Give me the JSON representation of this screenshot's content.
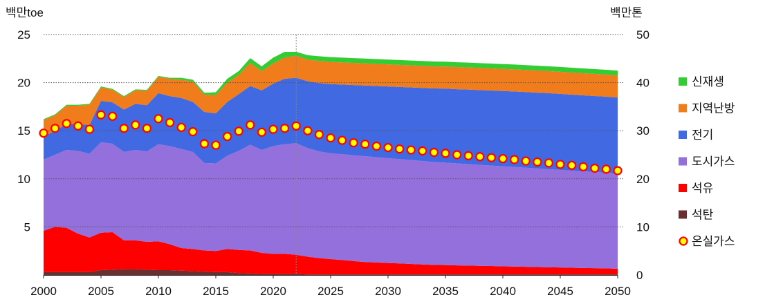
{
  "chart_data": {
    "type": "area",
    "left_axis_label": "백만toe",
    "right_axis_label": "백만톤",
    "left_ylim": [
      0,
      25
    ],
    "right_ylim": [
      0,
      50
    ],
    "left_ticks": [
      "5",
      "10",
      "15",
      "20",
      "25"
    ],
    "right_ticks": [
      "0",
      "10",
      "20",
      "30",
      "40",
      "50"
    ],
    "x_ticks": [
      "2000",
      "2005",
      "2010",
      "2015",
      "2020",
      "2025",
      "2030",
      "2035",
      "2040",
      "2045",
      "2050"
    ],
    "grid": "dotted horizontal",
    "projection_divider_year": 2022,
    "legend_position": "right",
    "x": [
      2000,
      2001,
      2002,
      2003,
      2004,
      2005,
      2006,
      2007,
      2008,
      2009,
      2010,
      2011,
      2012,
      2013,
      2014,
      2015,
      2016,
      2017,
      2018,
      2019,
      2020,
      2021,
      2022,
      2023,
      2024,
      2025,
      2026,
      2027,
      2028,
      2029,
      2030,
      2031,
      2032,
      2033,
      2034,
      2035,
      2036,
      2037,
      2038,
      2039,
      2040,
      2041,
      2042,
      2043,
      2044,
      2045,
      2046,
      2047,
      2048,
      2049,
      2050
    ],
    "series": [
      {
        "name": "석탄",
        "axis": "left",
        "color": "#6b2f2f",
        "values": [
          0.3,
          0.3,
          0.3,
          0.3,
          0.3,
          0.5,
          0.55,
          0.6,
          0.6,
          0.55,
          0.5,
          0.5,
          0.45,
          0.4,
          0.35,
          0.3,
          0.3,
          0.2,
          0.15,
          0.1,
          0.1,
          0.1,
          0.1,
          0.05,
          0.05,
          0.05,
          0.05,
          0.05,
          0.05,
          0.05,
          0.05,
          0.05,
          0.05,
          0.05,
          0.05,
          0.05,
          0.05,
          0.05,
          0.05,
          0.05,
          0.05,
          0.05,
          0.05,
          0.05,
          0.05,
          0.05,
          0.05,
          0.05,
          0.05,
          0.05,
          0.05
        ]
      },
      {
        "name": "석유",
        "axis": "left",
        "color": "#ff0000",
        "values": [
          4.3,
          4.7,
          4.6,
          4.0,
          3.6,
          3.9,
          3.9,
          3.0,
          3.0,
          2.9,
          3.0,
          2.7,
          2.35,
          2.3,
          2.2,
          2.2,
          2.4,
          2.4,
          2.4,
          2.2,
          2.1,
          2.1,
          2.0,
          1.85,
          1.7,
          1.6,
          1.5,
          1.4,
          1.3,
          1.25,
          1.2,
          1.15,
          1.1,
          1.05,
          1.0,
          0.98,
          0.95,
          0.93,
          0.9,
          0.88,
          0.85,
          0.83,
          0.8,
          0.78,
          0.75,
          0.73,
          0.7,
          0.68,
          0.66,
          0.64,
          0.6
        ]
      },
      {
        "name": "도시가스",
        "axis": "left",
        "color": "#9370db",
        "values": [
          7.4,
          7.5,
          8.1,
          8.6,
          8.7,
          9.4,
          9.2,
          9.2,
          9.4,
          9.4,
          10.1,
          10.2,
          10.3,
          10.1,
          9.1,
          9.1,
          9.7,
          10.3,
          11.0,
          10.7,
          11.2,
          11.4,
          11.6,
          11.3,
          11.1,
          11.0,
          11.0,
          11.0,
          11.0,
          10.95,
          10.9,
          10.85,
          10.8,
          10.75,
          10.7,
          10.65,
          10.6,
          10.55,
          10.5,
          10.45,
          10.4,
          10.35,
          10.3,
          10.25,
          10.2,
          10.15,
          10.1,
          10.05,
          10.0,
          9.95,
          9.9
        ]
      },
      {
        "name": "전기",
        "axis": "left",
        "color": "#4169e1",
        "values": [
          2.4,
          2.5,
          2.7,
          2.8,
          3.0,
          4.3,
          4.3,
          4.4,
          4.8,
          4.8,
          5.3,
          5.2,
          5.3,
          5.2,
          5.3,
          5.2,
          5.6,
          5.9,
          6.1,
          6.2,
          6.5,
          6.8,
          6.8,
          6.95,
          7.1,
          7.2,
          7.25,
          7.3,
          7.35,
          7.4,
          7.45,
          7.5,
          7.55,
          7.6,
          7.65,
          7.7,
          7.72,
          7.75,
          7.78,
          7.8,
          7.83,
          7.85,
          7.87,
          7.88,
          7.9,
          7.9,
          7.9,
          7.9,
          7.9,
          7.9,
          7.9
        ]
      },
      {
        "name": "지역난방",
        "axis": "left",
        "color": "#f07c1c",
        "values": [
          1.7,
          1.6,
          1.9,
          1.9,
          2.1,
          1.4,
          1.3,
          1.3,
          1.4,
          1.5,
          1.7,
          1.8,
          1.9,
          2.1,
          1.8,
          1.9,
          2.0,
          2.0,
          2.4,
          2.0,
          2.1,
          2.2,
          2.3,
          2.25,
          2.3,
          2.3,
          2.3,
          2.3,
          2.3,
          2.3,
          2.3,
          2.3,
          2.3,
          2.3,
          2.3,
          2.3,
          2.3,
          2.3,
          2.3,
          2.3,
          2.3,
          2.3,
          2.3,
          2.3,
          2.3,
          2.3,
          2.3,
          2.3,
          2.3,
          2.3,
          2.3
        ]
      },
      {
        "name": "신재생",
        "axis": "left",
        "color": "#33cc33",
        "values": [
          0.1,
          0.1,
          0.1,
          0.1,
          0.1,
          0.1,
          0.1,
          0.1,
          0.1,
          0.1,
          0.1,
          0.1,
          0.2,
          0.2,
          0.2,
          0.3,
          0.4,
          0.4,
          0.5,
          0.5,
          0.6,
          0.6,
          0.4,
          0.45,
          0.5,
          0.5,
          0.5,
          0.5,
          0.5,
          0.5,
          0.5,
          0.5,
          0.5,
          0.5,
          0.5,
          0.5,
          0.5,
          0.5,
          0.5,
          0.5,
          0.5,
          0.5,
          0.5,
          0.5,
          0.5,
          0.5,
          0.5,
          0.5,
          0.5,
          0.5,
          0.5
        ]
      },
      {
        "name": "온실가스",
        "axis": "right",
        "type": "scatter",
        "color": "#ffff00",
        "values": [
          29.5,
          30.5,
          31.5,
          31.0,
          30.3,
          33.3,
          33.0,
          30.5,
          31.2,
          30.5,
          32.5,
          31.7,
          30.7,
          29.8,
          27.3,
          27.0,
          28.8,
          29.9,
          31.2,
          29.7,
          30.3,
          30.5,
          31.0,
          30.0,
          29.2,
          28.5,
          28.0,
          27.5,
          27.2,
          26.8,
          26.5,
          26.2,
          26.0,
          25.8,
          25.5,
          25.3,
          25.0,
          24.8,
          24.6,
          24.4,
          24.2,
          24.0,
          23.7,
          23.5,
          23.3,
          23.0,
          22.8,
          22.5,
          22.2,
          22.0,
          21.7
        ]
      }
    ],
    "legend": [
      "신재생",
      "지역난방",
      "전기",
      "도시가스",
      "석유",
      "석탄",
      "온실가스"
    ]
  }
}
